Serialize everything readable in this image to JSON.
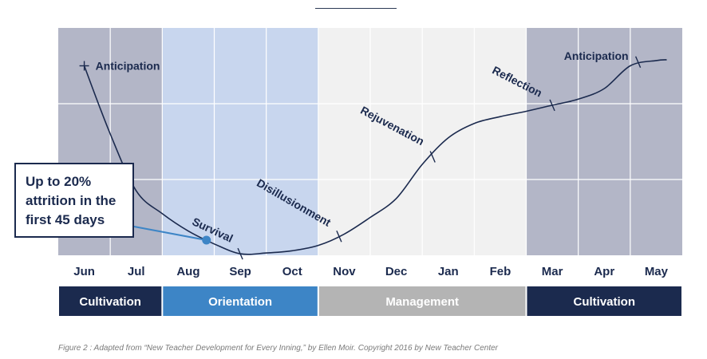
{
  "chart_data": {
    "type": "line",
    "x": [
      "Jun",
      "Jul",
      "Aug",
      "Sep",
      "Oct",
      "Nov",
      "Dec",
      "Jan",
      "Feb",
      "Mar",
      "Apr",
      "May"
    ],
    "y_range": [
      0,
      3
    ],
    "grid": true,
    "series": [
      {
        "name": "",
        "color": "#1b2a4e",
        "points": [
          [
            0.0,
            2.5
          ],
          [
            0.5,
            1.6
          ],
          [
            1.0,
            0.85
          ],
          [
            1.5,
            0.55
          ],
          [
            2.0,
            0.32
          ],
          [
            2.5,
            0.15
          ],
          [
            3.0,
            0.02
          ],
          [
            3.5,
            0.03
          ],
          [
            4.0,
            0.06
          ],
          [
            4.5,
            0.13
          ],
          [
            5.0,
            0.28
          ],
          [
            5.5,
            0.5
          ],
          [
            6.0,
            0.75
          ],
          [
            6.5,
            1.2
          ],
          [
            7.0,
            1.55
          ],
          [
            7.5,
            1.74
          ],
          [
            8.0,
            1.83
          ],
          [
            8.5,
            1.9
          ],
          [
            9.0,
            1.98
          ],
          [
            9.5,
            2.06
          ],
          [
            10.0,
            2.2
          ],
          [
            10.5,
            2.5
          ],
          [
            11.0,
            2.57
          ],
          [
            11.2,
            2.58
          ]
        ]
      }
    ],
    "phase_markers": [
      {
        "label": "Anticipation",
        "x": 0.0,
        "y": 2.5
      },
      {
        "label": "Survival",
        "x": 3.0,
        "y": 0.02
      },
      {
        "label": "Disillusionment",
        "x": 4.9,
        "y": 0.25
      },
      {
        "label": "Rejuvenation",
        "x": 6.7,
        "y": 1.3
      },
      {
        "label": "Reflection",
        "x": 9.0,
        "y": 1.98
      },
      {
        "label": "Anticipation",
        "x": 10.65,
        "y": 2.55
      }
    ],
    "background_bands": [
      {
        "start": 0,
        "end": 2,
        "color": "#b3b6c7"
      },
      {
        "start": 2,
        "end": 5,
        "color": "#c8d6ee"
      },
      {
        "start": 5,
        "end": 9,
        "color": "#f1f1f1"
      },
      {
        "start": 9,
        "end": 12,
        "color": "#b3b6c7"
      }
    ],
    "stages": [
      {
        "label": "Cultivation",
        "start": 0,
        "end": 2,
        "color": "#1b2a4e"
      },
      {
        "label": "Orientation",
        "start": 2,
        "end": 5,
        "color": "#3d85c6"
      },
      {
        "label": "Management",
        "start": 5,
        "end": 9,
        "color": "#b4b4b4"
      },
      {
        "label": "Cultivation",
        "start": 9,
        "end": 12,
        "color": "#1b2a4e"
      }
    ],
    "annotation": {
      "lines": [
        "Up to 20%",
        "attrition in the",
        "first 45 days"
      ],
      "points_to": {
        "x": 2.35,
        "y": 0.2
      },
      "line_color": "#3d85c6"
    }
  },
  "caption": "Figure 2 : Adapted from “New Teacher Development for Every Inning,” by Ellen Moir. Copyright 2016 by New Teacher Center"
}
